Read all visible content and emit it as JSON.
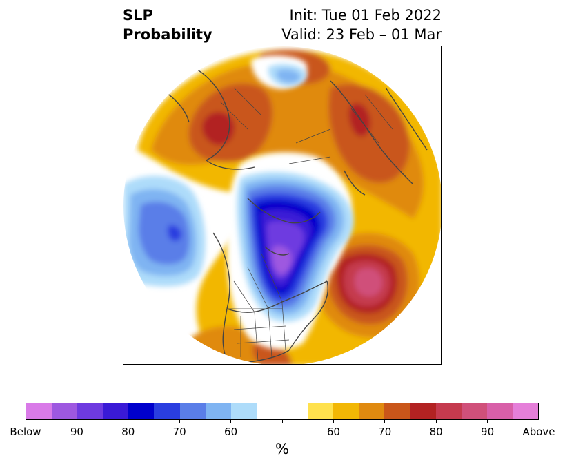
{
  "title": {
    "left_line1": "SLP",
    "left_line2": "Probability",
    "right_line1": "Init: Tue 01 Feb 2022",
    "right_line2": "Valid: 23 Feb – 01 Mar"
  },
  "colorbar": {
    "unit": "%",
    "colors": [
      "#d97ae8",
      "#9e58e0",
      "#6e3ae0",
      "#3a1ad6",
      "#0000cc",
      "#2a3ee0",
      "#5a7ee8",
      "#7fb4f2",
      "#aedcfa",
      "#ffffff",
      "#ffffff",
      "#ffe14d",
      "#f2b705",
      "#e08a10",
      "#c9561a",
      "#b22222",
      "#c53a4e",
      "#d0507a",
      "#d85fa8",
      "#e57fd9"
    ],
    "tick_labels": [
      "Below",
      "90",
      "80",
      "70",
      "60",
      "60",
      "70",
      "80",
      "90",
      "Above"
    ]
  }
}
